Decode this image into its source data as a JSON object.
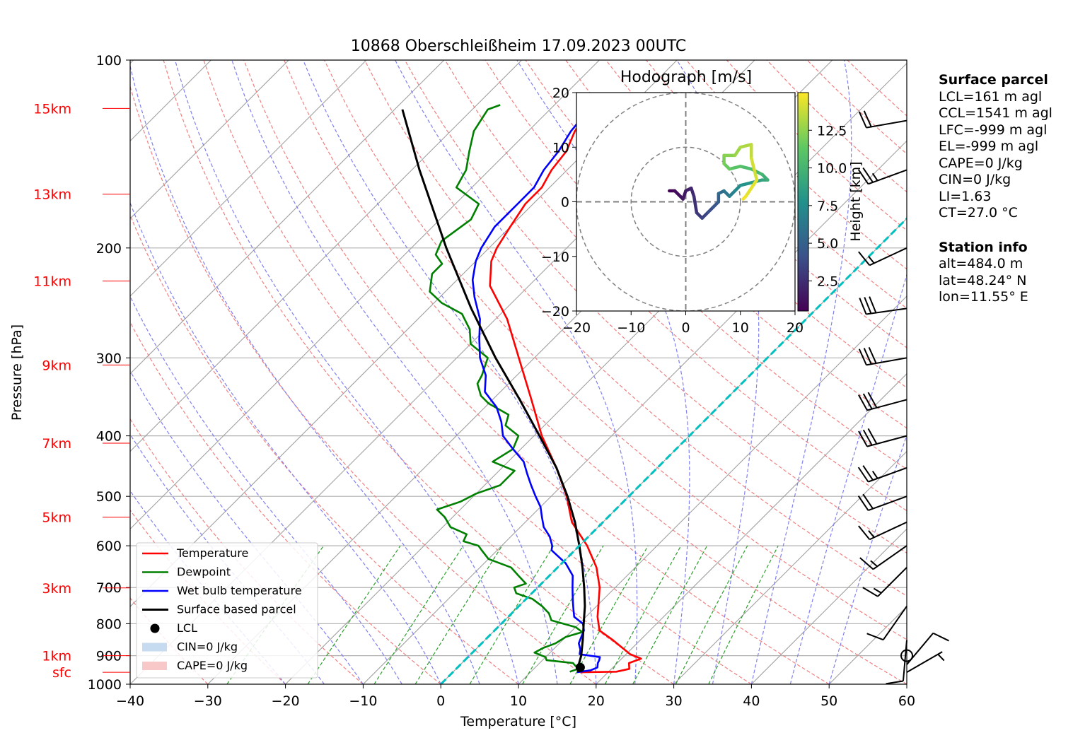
{
  "title": "10868 Oberschleißheim 17.09.2023 00UTC",
  "colors": {
    "temperature": "#ff0000",
    "dewpoint": "#008000",
    "wetbulb": "#0000ff",
    "parcel": "#000000",
    "isotherm": "#a0a0a0",
    "dry_adiabat": "#f08080",
    "moist_adiabat": "#8080f0",
    "mixing_ratio": "#2ca02c",
    "zero_isotherm": "#00c0c0",
    "height_label": "#ff0000"
  },
  "chart_data": [
    {
      "type": "line",
      "subtype": "skew-T log-p",
      "title": "10868 Oberschleißheim 17.09.2023 00UTC",
      "xlabel": "Temperature [°C]",
      "ylabel": "Pressure [hPa]",
      "xlim": [
        -40,
        60
      ],
      "ylim": [
        1000,
        100
      ],
      "y_scale": "log",
      "grid": true,
      "x_ticks": [
        -40,
        -30,
        -20,
        -10,
        0,
        10,
        20,
        30,
        40,
        50,
        60
      ],
      "x_tick_labels": [
        "−40",
        "−30",
        "−20",
        "−10",
        "0",
        "10",
        "20",
        "30",
        "40",
        "50",
        "60"
      ],
      "y_ticks": [
        100,
        200,
        300,
        400,
        500,
        600,
        700,
        800,
        900,
        1000
      ],
      "y_tick_labels": [
        "100",
        "200",
        "300",
        "400",
        "500",
        "600",
        "700",
        "800",
        "900",
        "1000"
      ],
      "height_ticks": [
        {
          "label": "15km",
          "p": 119.5
        },
        {
          "label": "13km",
          "p": 164
        },
        {
          "label": "11km",
          "p": 226
        },
        {
          "label": "9km",
          "p": 308
        },
        {
          "label": "7km",
          "p": 411
        },
        {
          "label": "5km",
          "p": 540
        },
        {
          "label": "3km",
          "p": 701
        },
        {
          "label": "1km",
          "p": 900
        },
        {
          "label": "sfc",
          "p": 957
        }
      ],
      "legend_position": "lower-left",
      "legend": [
        {
          "label": "Temperature",
          "kind": "line",
          "color": "#ff0000"
        },
        {
          "label": "Dewpoint",
          "kind": "line",
          "color": "#008000"
        },
        {
          "label": "Wet bulb temperature",
          "kind": "line",
          "color": "#0000ff"
        },
        {
          "label": "Surface based parcel",
          "kind": "line",
          "color": "#000000"
        },
        {
          "label": "LCL",
          "kind": "marker",
          "color": "#000000"
        },
        {
          "label": "CIN=0 J/kg",
          "kind": "patch",
          "color": "#c6dbef"
        },
        {
          "label": "CAPE=0 J/kg",
          "kind": "patch",
          "color": "#f8c8c8"
        }
      ],
      "series": [
        {
          "name": "Temperature",
          "points": [
            [
              957,
              16.5
            ],
            [
              955,
              21
            ],
            [
              945,
              22.3
            ],
            [
              925,
              21.5
            ],
            [
              910,
              22.5
            ],
            [
              895,
              20.5
            ],
            [
              850,
              16.5
            ],
            [
              820,
              13.5
            ],
            [
              780,
              11.5
            ],
            [
              700,
              8
            ],
            [
              650,
              5
            ],
            [
              600,
              1
            ],
            [
              550,
              -4
            ],
            [
              500,
              -8
            ],
            [
              450,
              -13
            ],
            [
              400,
              -19
            ],
            [
              350,
              -25
            ],
            [
              300,
              -32
            ],
            [
              260,
              -38.5
            ],
            [
              230,
              -45
            ],
            [
              210,
              -48
            ],
            [
              200,
              -49
            ],
            [
              185,
              -50
            ],
            [
              170,
              -51
            ],
            [
              160,
              -51
            ],
            [
              150,
              -52
            ],
            [
              140,
              -52.5
            ],
            [
              130,
              -54
            ],
            [
              120,
              -54.5
            ],
            [
              115,
              -55
            ]
          ]
        },
        {
          "name": "Dewpoint",
          "points": [
            [
              955,
              15
            ],
            [
              945,
              15.7
            ],
            [
              935,
              15
            ],
            [
              925,
              14.3
            ],
            [
              915,
              10.5
            ],
            [
              905,
              10
            ],
            [
              890,
              8
            ],
            [
              875,
              8.5
            ],
            [
              860,
              9.5
            ],
            [
              840,
              10
            ],
            [
              825,
              11.5
            ],
            [
              810,
              10
            ],
            [
              790,
              6
            ],
            [
              770,
              4.8
            ],
            [
              750,
              3
            ],
            [
              730,
              0.8
            ],
            [
              715,
              -2
            ],
            [
              700,
              -3
            ],
            [
              690,
              -2
            ],
            [
              670,
              -4
            ],
            [
              650,
              -6
            ],
            [
              630,
              -10
            ],
            [
              610,
              -12
            ],
            [
              600,
              -13
            ],
            [
              590,
              -15.5
            ],
            [
              575,
              -16
            ],
            [
              560,
              -19
            ],
            [
              540,
              -21
            ],
            [
              525,
              -23
            ],
            [
              510,
              -21
            ],
            [
              495,
              -20
            ],
            [
              480,
              -18
            ],
            [
              455,
              -18
            ],
            [
              440,
              -22
            ],
            [
              420,
              -21
            ],
            [
              400,
              -22
            ],
            [
              385,
              -25
            ],
            [
              370,
              -26
            ],
            [
              355,
              -30
            ],
            [
              345,
              -32
            ],
            [
              330,
              -34
            ],
            [
              320,
              -34.5
            ],
            [
              300,
              -36
            ],
            [
              285,
              -40
            ],
            [
              270,
              -42
            ],
            [
              255,
              -45
            ],
            [
              245,
              -49
            ],
            [
              235,
              -52
            ],
            [
              220,
              -54
            ],
            [
              212,
              -54
            ],
            [
              205,
              -56
            ],
            [
              195,
              -57
            ],
            [
              180,
              -56
            ],
            [
              170,
              -57
            ],
            [
              160,
              -62
            ],
            [
              150,
              -63
            ],
            [
              140,
              -65
            ],
            [
              130,
              -67
            ],
            [
              120,
              -68
            ],
            [
              118,
              -67
            ]
          ]
        },
        {
          "name": "Wet bulb temperature",
          "points": [
            [
              957,
              16
            ],
            [
              950,
              17.5
            ],
            [
              940,
              18
            ],
            [
              925,
              17.5
            ],
            [
              915,
              17.3
            ],
            [
              905,
              17
            ],
            [
              895,
              14
            ],
            [
              880,
              13.5
            ],
            [
              860,
              12.5
            ],
            [
              840,
              12
            ],
            [
              820,
              11.5
            ],
            [
              800,
              10.5
            ],
            [
              780,
              8.5
            ],
            [
              760,
              7.5
            ],
            [
              740,
              6.5
            ],
            [
              720,
              5.5
            ],
            [
              700,
              4.5
            ],
            [
              670,
              3
            ],
            [
              640,
              0.5
            ],
            [
              610,
              -3
            ],
            [
              600,
              -3.5
            ],
            [
              580,
              -5
            ],
            [
              560,
              -7
            ],
            [
              540,
              -8.5
            ],
            [
              520,
              -10
            ],
            [
              500,
              -12
            ],
            [
              480,
              -14
            ],
            [
              460,
              -16
            ],
            [
              440,
              -18
            ],
            [
              420,
              -21
            ],
            [
              400,
              -24
            ],
            [
              380,
              -26
            ],
            [
              360,
              -28.5
            ],
            [
              340,
              -32
            ],
            [
              320,
              -34
            ],
            [
              300,
              -37
            ],
            [
              280,
              -39.5
            ],
            [
              260,
              -42
            ],
            [
              240,
              -45.5
            ],
            [
              225,
              -48
            ],
            [
              210,
              -50
            ],
            [
              200,
              -51
            ],
            [
              185,
              -52
            ],
            [
              170,
              -52
            ],
            [
              160,
              -52
            ],
            [
              150,
              -53
            ],
            [
              140,
              -53.5
            ],
            [
              130,
              -54.5
            ],
            [
              120,
              -55
            ],
            [
              115,
              -55.5
            ]
          ]
        },
        {
          "name": "Surface based parcel",
          "points": [
            [
              957,
              16.2
            ],
            [
              940,
              15.5
            ],
            [
              900,
              14.4
            ],
            [
              850,
              12.6
            ],
            [
              800,
              10.6
            ],
            [
              750,
              8.5
            ],
            [
              700,
              6
            ],
            [
              650,
              3.2
            ],
            [
              600,
              0
            ],
            [
              550,
              -3.6
            ],
            [
              500,
              -7.9
            ],
            [
              450,
              -13
            ],
            [
              400,
              -19.3
            ],
            [
              350,
              -26.5
            ],
            [
              300,
              -35
            ],
            [
              250,
              -44.5
            ],
            [
              200,
              -55.5
            ],
            [
              150,
              -69
            ],
            [
              120,
              -79
            ]
          ]
        },
        {
          "name": "0 °C isotherm",
          "points": [
            [
              1000,
              0
            ],
            [
              120,
              0
            ]
          ]
        }
      ],
      "lcl": {
        "p": 940,
        "t": 15.8
      },
      "cin_area": 0,
      "cape_area": 0,
      "wind_barbs": [
        {
          "p": 957,
          "direction": 60,
          "speed_kt": 5
        },
        {
          "p": 930,
          "direction": 40,
          "speed_kt": 8
        },
        {
          "p": 900,
          "direction": 0,
          "speed_kt": 0
        },
        {
          "p": 850,
          "direction": 185,
          "speed_kt": 8
        },
        {
          "p": 750,
          "direction": 215,
          "speed_kt": 10
        },
        {
          "p": 650,
          "direction": 225,
          "speed_kt": 13
        },
        {
          "p": 600,
          "direction": 235,
          "speed_kt": 15
        },
        {
          "p": 550,
          "direction": 245,
          "speed_kt": 17
        },
        {
          "p": 500,
          "direction": 250,
          "speed_kt": 20
        },
        {
          "p": 450,
          "direction": 250,
          "speed_kt": 25
        },
        {
          "p": 400,
          "direction": 255,
          "speed_kt": 28
        },
        {
          "p": 350,
          "direction": 255,
          "speed_kt": 28
        },
        {
          "p": 300,
          "direction": 260,
          "speed_kt": 28
        },
        {
          "p": 250,
          "direction": 262,
          "speed_kt": 30
        },
        {
          "p": 200,
          "direction": 245,
          "speed_kt": 15
        },
        {
          "p": 150,
          "direction": 250,
          "speed_kt": 25
        },
        {
          "p": 125,
          "direction": 260,
          "speed_kt": 20
        }
      ]
    },
    {
      "type": "line",
      "subtype": "hodograph",
      "title": "Hodograph [m/s]",
      "xlim": [
        -20,
        20
      ],
      "ylim": [
        -20,
        20
      ],
      "x_ticks": [
        -20,
        -10,
        0,
        10,
        20
      ],
      "y_ticks": [
        -20,
        -10,
        0,
        10,
        20
      ],
      "x_tick_labels": [
        "−20",
        "−10",
        "0",
        "10",
        "20"
      ],
      "y_tick_labels": [
        "−20",
        "−10",
        "0",
        "10",
        "20"
      ],
      "rings": [
        10,
        20
      ],
      "colorbar": {
        "label": "Height [km]",
        "ticks": [
          2.5,
          5.0,
          7.5,
          10.0,
          12.5
        ],
        "tick_labels": [
          "2.5",
          "5.0",
          "7.5",
          "10.0",
          "12.5"
        ],
        "range": [
          0.5,
          15
        ],
        "colormap": "viridis"
      },
      "trace": [
        {
          "u": -3,
          "v": 2,
          "h": 0.5
        },
        {
          "u": -2,
          "v": 2,
          "h": 0.8
        },
        {
          "u": -1,
          "v": 1,
          "h": 1.1
        },
        {
          "u": -0.5,
          "v": 0.5,
          "h": 1.4
        },
        {
          "u": 0,
          "v": 2,
          "h": 1.7
        },
        {
          "u": 1,
          "v": 2.5,
          "h": 2.0
        },
        {
          "u": 1.5,
          "v": 1,
          "h": 2.4
        },
        {
          "u": 2,
          "v": -2,
          "h": 2.8
        },
        {
          "u": 3,
          "v": -3,
          "h": 3.2
        },
        {
          "u": 4,
          "v": -2,
          "h": 3.7
        },
        {
          "u": 5,
          "v": -1,
          "h": 4.2
        },
        {
          "u": 6,
          "v": 0,
          "h": 4.7
        },
        {
          "u": 6,
          "v": 1.5,
          "h": 5.2
        },
        {
          "u": 7,
          "v": 2,
          "h": 5.8
        },
        {
          "u": 8,
          "v": 1,
          "h": 6.4
        },
        {
          "u": 9,
          "v": 2,
          "h": 7.0
        },
        {
          "u": 10,
          "v": 3,
          "h": 7.6
        },
        {
          "u": 12,
          "v": 3.5,
          "h": 8.2
        },
        {
          "u": 14,
          "v": 4,
          "h": 8.8
        },
        {
          "u": 15,
          "v": 4,
          "h": 9.3
        },
        {
          "u": 14,
          "v": 5,
          "h": 9.8
        },
        {
          "u": 12,
          "v": 6,
          "h": 10.3
        },
        {
          "u": 10,
          "v": 6.5,
          "h": 10.8
        },
        {
          "u": 8,
          "v": 6,
          "h": 11.3
        },
        {
          "u": 7,
          "v": 7,
          "h": 11.8
        },
        {
          "u": 7,
          "v": 8.5,
          "h": 12.2
        },
        {
          "u": 9,
          "v": 8.5,
          "h": 12.6
        },
        {
          "u": 10,
          "v": 10,
          "h": 13.0
        },
        {
          "u": 12,
          "v": 10.5,
          "h": 13.4
        },
        {
          "u": 12,
          "v": 8,
          "h": 13.8
        },
        {
          "u": 13,
          "v": 4,
          "h": 14.2
        },
        {
          "u": 11,
          "v": 1,
          "h": 14.6
        },
        {
          "u": 10.5,
          "v": 0.5,
          "h": 14.9
        }
      ]
    }
  ],
  "surface_parcel": {
    "header": "Surface parcel",
    "lines": [
      "LCL=161 m agl",
      "CCL=1541 m agl",
      "LFC=-999 m agl",
      "EL=-999 m agl",
      "CAPE=0 J/kg",
      "CIN=0 J/kg",
      "LI=1.63",
      "CT=27.0 °C"
    ]
  },
  "station_info": {
    "header": "Station info",
    "lines": [
      "alt=484.0 m",
      "lat=48.24° N",
      "lon=11.55° E"
    ]
  }
}
